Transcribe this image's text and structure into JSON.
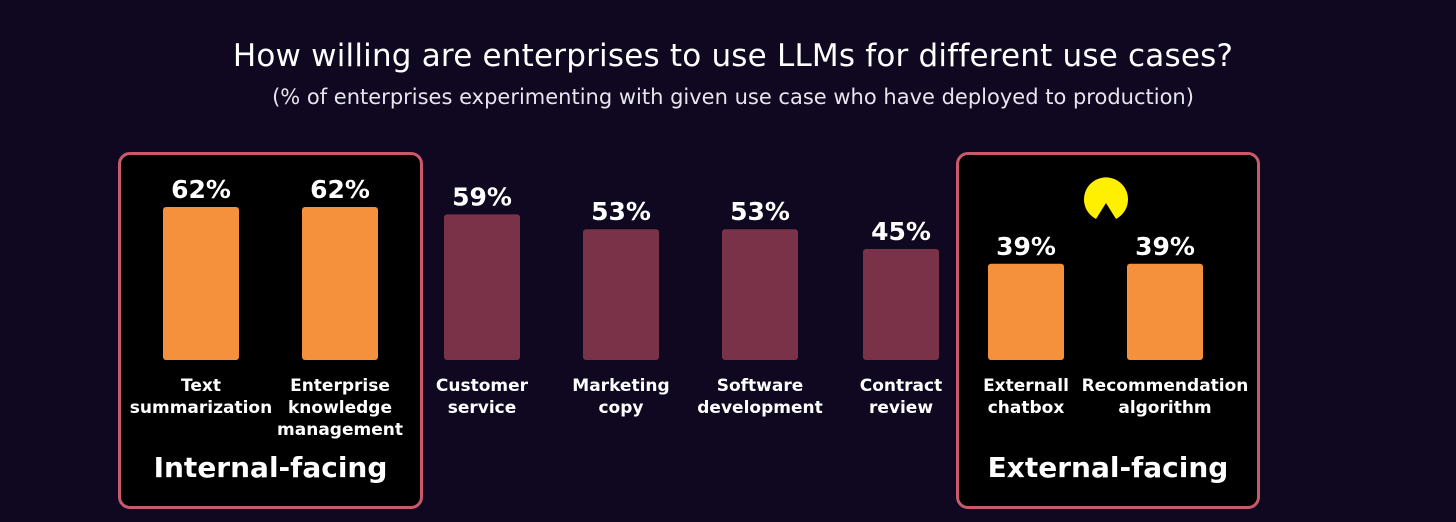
{
  "chart_data": {
    "type": "bar",
    "title": "How willing are enterprises to use LLMs for different use cases?",
    "subtitle": "(% of enterprises experimenting with given use case who have deployed to production)",
    "categories": [
      [
        "Text",
        "summarization"
      ],
      [
        "Enterprise",
        "knowledge",
        "management"
      ],
      [
        "Customer",
        "service"
      ],
      [
        "Marketing",
        "copy"
      ],
      [
        "Software",
        "development"
      ],
      [
        "Contract",
        "review"
      ],
      [
        "Externall",
        "chatbox"
      ],
      [
        "Recommendation",
        "algorithm"
      ]
    ],
    "values": [
      62,
      62,
      59,
      53,
      53,
      45,
      39,
      39
    ],
    "value_labels": [
      "62%",
      "62%",
      "59%",
      "53%",
      "53%",
      "45%",
      "39%",
      "39%"
    ],
    "highlighted": [
      true,
      true,
      false,
      false,
      false,
      false,
      true,
      true
    ],
    "groups": [
      {
        "label": "Internal-facing",
        "members": [
          0,
          1
        ]
      },
      {
        "label": "External-facing",
        "members": [
          6,
          7
        ]
      }
    ],
    "colors": {
      "highlight": "#f5913c",
      "normal": "#7a3248",
      "group_border": "#c85a6c",
      "background": "#0f0820"
    },
    "ylim": [
      0,
      100
    ],
    "grid": false,
    "legend": "none"
  },
  "decor": {
    "icon": "pacman-icon",
    "icon_color": "#ffef00"
  }
}
